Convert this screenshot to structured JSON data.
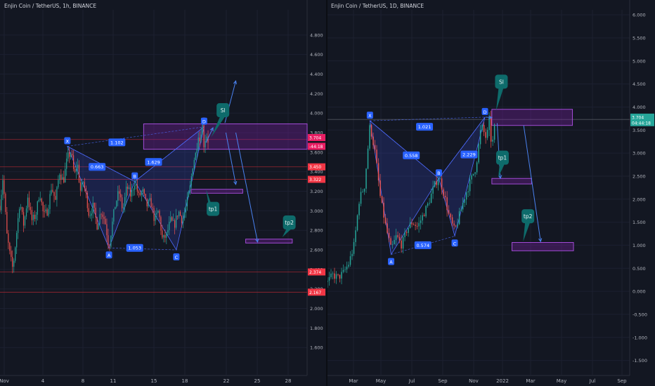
{
  "colors": {
    "background": "#131722",
    "grid": "#1c2030",
    "text": "#d1d4dc",
    "axis_text": "#b2b5be",
    "candle_up": "#26a69a",
    "candle_down": "#ef5350",
    "pattern_fill": "#3b4fd8",
    "pattern_line": "#4d6bff",
    "zone_fill": "#7b1fa2",
    "zone_stroke": "#a24bd6",
    "arrow": "#4a82f0",
    "callout": "#0e6b6b",
    "label_blue": "#2962ff",
    "price_red": "#f23645",
    "price_line": "#b22833",
    "price_pink": "#e91e63"
  },
  "chart_data": [
    {
      "type": "candlestick",
      "title": "Enjin Coin / TetherUS, 1h, BINANCE",
      "y_axis_ticks": [
        "4.800",
        "4.600",
        "4.400",
        "4.200",
        "4.000",
        "3.800",
        "3.600",
        "3.400",
        "3.200",
        "3.000",
        "2.800",
        "2.600",
        "2.400",
        "2.200",
        "2.000",
        "1.800",
        "1.600"
      ],
      "x_axis_ticks": [
        "Nov",
        "4",
        "8",
        "11",
        "15",
        "18",
        "22",
        "25",
        "28"
      ],
      "ylim": [
        1.35,
        5.0
      ],
      "x_days": [
        0,
        31
      ],
      "price_series": {
        "t": [
          0,
          0.3,
          0.7,
          1.0,
          1.3,
          1.6,
          2.0,
          2.4,
          2.8,
          3.2,
          3.6,
          4.0,
          4.4,
          4.8,
          5.2,
          5.6,
          6.0,
          6.4,
          6.8,
          7.2,
          7.5,
          7.8,
          8.1,
          8.4,
          8.7,
          9.0,
          9.4,
          9.8,
          10.2,
          10.6,
          11.0,
          11.3,
          11.6,
          12.0,
          12.4,
          12.8,
          13.2,
          13.6,
          14.0,
          14.4,
          14.8,
          15.2,
          15.6,
          16.0,
          16.4,
          16.8,
          17.2,
          17.6,
          18.0,
          18.4,
          18.8,
          19.2,
          19.5,
          19.8,
          20.0,
          20.2,
          20.4,
          20.6,
          20.8,
          21.0
        ],
        "v": [
          3.05,
          3.35,
          2.75,
          2.55,
          2.4,
          2.7,
          3.1,
          2.85,
          3.15,
          2.9,
          2.95,
          3.2,
          2.95,
          3.0,
          3.25,
          3.1,
          3.4,
          3.3,
          3.55,
          3.6,
          3.35,
          3.5,
          3.2,
          3.3,
          3.15,
          2.95,
          3.05,
          2.85,
          3.0,
          2.9,
          2.62,
          2.85,
          3.05,
          3.2,
          3.0,
          3.25,
          3.15,
          3.3,
          3.15,
          3.2,
          3.05,
          3.1,
          2.9,
          3.0,
          2.7,
          2.75,
          2.9,
          2.85,
          3.0,
          2.9,
          3.05,
          3.25,
          3.5,
          3.6,
          3.8,
          3.7,
          3.95,
          3.65,
          3.8,
          3.72
        ]
      },
      "pattern_points": [
        {
          "label": "X",
          "t": 6.8,
          "v": 3.66
        },
        {
          "label": "A",
          "t": 11.0,
          "v": 2.62
        },
        {
          "label": "B",
          "t": 13.6,
          "v": 3.3
        },
        {
          "label": "C",
          "t": 17.8,
          "v": 2.6
        },
        {
          "label": "D",
          "t": 20.6,
          "v": 3.86
        }
      ],
      "ratio_labels": [
        {
          "text": "1.102",
          "t": 11.8,
          "v": 3.7
        },
        {
          "text": "0.663",
          "t": 9.8,
          "v": 3.45
        },
        {
          "text": "1.629",
          "t": 15.5,
          "v": 3.5
        },
        {
          "text": "1.053",
          "t": 13.6,
          "v": 2.62
        }
      ],
      "zones": [
        {
          "name": "sl-zone",
          "t0": 14.5,
          "t1": 31,
          "v0": 3.63,
          "v1": 3.89
        },
        {
          "name": "tp1-zone",
          "t0": 19.3,
          "t1": 24.5,
          "v0": 3.18,
          "v1": 3.22
        },
        {
          "name": "tp2-zone",
          "t0": 24.8,
          "t1": 29.5,
          "v0": 2.67,
          "v1": 2.71
        }
      ],
      "horizontal_lines": [
        {
          "v": 3.73,
          "color": "#b22833"
        },
        {
          "v": 3.45,
          "color": "#b22833"
        },
        {
          "v": 3.322,
          "color": "#b22833"
        },
        {
          "v": 2.374,
          "color": "#b22833"
        },
        {
          "v": 2.167,
          "color": "#b22833"
        }
      ],
      "arrows": [
        {
          "t0": 20.8,
          "v0": 3.7,
          "t1": 21.5,
          "v1": 3.85
        },
        {
          "t0": 22.7,
          "v0": 3.9,
          "t1": 23.8,
          "v1": 4.33
        },
        {
          "t0": 22.8,
          "v0": 3.8,
          "t1": 23.8,
          "v1": 3.27
        },
        {
          "t0": 23.8,
          "v0": 3.8,
          "t1": 26.0,
          "v1": 2.68
        }
      ],
      "callouts": [
        {
          "text": "Sl",
          "t": 22.5,
          "v": 4.03,
          "tip_t": 21.3,
          "tip_v": 3.75
        },
        {
          "text": "tp1",
          "t": 21.5,
          "v": 3.02,
          "tip_t": 20.8,
          "tip_v": 3.22
        },
        {
          "text": "tp2",
          "t": 29.2,
          "v": 2.88,
          "tip_t": 28.5,
          "tip_v": 2.73
        }
      ],
      "price_labels": [
        {
          "text": "3.704",
          "v": 3.75,
          "color": "#e91e63"
        },
        {
          "text": "-44:18",
          "v": 3.66,
          "color": "#e91e63"
        },
        {
          "text": "3.450",
          "v": 3.45,
          "color": "#f23645"
        },
        {
          "text": "3.322",
          "v": 3.322,
          "color": "#f23645"
        },
        {
          "text": "2.374",
          "v": 2.374,
          "color": "#f23645"
        },
        {
          "text": "2.167",
          "v": 2.167,
          "color": "#f23645"
        }
      ]
    },
    {
      "type": "candlestick",
      "title": "Enjin Coin / TetherUS, 1D, BINANCE",
      "y_axis_ticks": [
        "6.000",
        "5.500",
        "5.000",
        "4.500",
        "4.000",
        "3.500",
        "3.000",
        "2.500",
        "2.000",
        "1.500",
        "1.000",
        "0.500",
        "0.000",
        "-0.500",
        "-1.000",
        "-1.500"
      ],
      "x_axis_ticks": [
        "Mar",
        "May",
        "Jul",
        "Sep",
        "Nov",
        "2022",
        "Mar",
        "May",
        "Jul",
        "Sep"
      ],
      "ylim": [
        -1.75,
        6.2
      ],
      "x_days": [
        0,
        570
      ],
      "price_series": {
        "t": [
          0,
          10,
          20,
          30,
          40,
          50,
          60,
          70,
          80,
          90,
          100,
          110,
          120,
          130,
          140,
          150,
          160,
          170,
          180,
          190,
          200,
          210,
          220,
          230,
          240,
          250,
          260,
          270,
          280,
          290,
          300,
          305,
          310,
          315
        ],
        "v": [
          0.2,
          0.35,
          0.3,
          0.4,
          0.6,
          1.0,
          2.0,
          2.3,
          3.6,
          3.0,
          2.0,
          1.4,
          0.9,
          1.2,
          1.0,
          1.35,
          1.5,
          1.4,
          1.65,
          1.9,
          2.25,
          2.5,
          2.1,
          1.6,
          1.3,
          1.7,
          2.1,
          2.4,
          2.7,
          3.6,
          3.3,
          3.7,
          3.1,
          3.55
        ]
      },
      "pattern_points": [
        {
          "label": "X",
          "t": 80,
          "v": 3.7
        },
        {
          "label": "A",
          "t": 120,
          "v": 0.8
        },
        {
          "label": "B",
          "t": 210,
          "v": 2.45
        },
        {
          "label": "C",
          "t": 240,
          "v": 1.2
        },
        {
          "label": "D",
          "t": 297,
          "v": 3.78
        }
      ],
      "ratio_labels": [
        {
          "text": "1.021",
          "t": 183,
          "v": 3.57
        },
        {
          "text": "0.558",
          "t": 158,
          "v": 2.95
        },
        {
          "text": "2.229",
          "t": 267,
          "v": 2.97
        },
        {
          "text": "0.574",
          "t": 180,
          "v": 1.0
        }
      ],
      "zones": [
        {
          "name": "sl-zone",
          "t0": 310,
          "t1": 462,
          "v0": 3.6,
          "v1": 3.95
        },
        {
          "name": "tp1-zone",
          "t0": 310,
          "t1": 385,
          "v0": 2.33,
          "v1": 2.45
        },
        {
          "name": "tp2-zone",
          "t0": 348,
          "t1": 464,
          "v0": 0.88,
          "v1": 1.06
        }
      ],
      "horizontal_lines": [
        {
          "v": 3.73,
          "color": "#5d606b"
        }
      ],
      "arrows": [
        {
          "t0": 298,
          "v0": 3.78,
          "t1": 310,
          "v1": 3.77
        },
        {
          "t0": 320,
          "v0": 3.65,
          "t1": 326,
          "v1": 2.45
        },
        {
          "t0": 370,
          "v0": 3.6,
          "t1": 402,
          "v1": 1.08
        }
      ],
      "callouts": [
        {
          "text": "Sl",
          "t": 328,
          "v": 4.55,
          "tip_t": 318,
          "tip_v": 3.92
        },
        {
          "text": "tp1",
          "t": 330,
          "v": 2.9,
          "tip_t": 322,
          "tip_v": 2.47
        },
        {
          "text": "tp2",
          "t": 378,
          "v": 1.63,
          "tip_t": 369,
          "tip_v": 1.08
        }
      ],
      "price_labels": [
        {
          "text": "3.704",
          "v": 3.78,
          "color": "#26a69a"
        },
        {
          "text": "04:44:18",
          "v": 3.66,
          "color": "#26a69a"
        }
      ]
    }
  ]
}
